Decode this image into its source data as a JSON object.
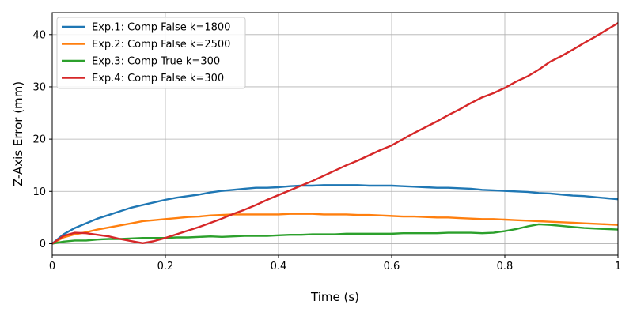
{
  "chart_data": {
    "type": "line",
    "title": "",
    "xlabel": "Time (s)",
    "ylabel": "Z-Axis Error (mm)",
    "xlim": [
      0,
      1
    ],
    "ylim": [
      -2.2,
      44.2
    ],
    "xticks": [
      0,
      0.2,
      0.4,
      0.6,
      0.8,
      1
    ],
    "xtick_labels": [
      "0",
      "0.2",
      "0.4",
      "0.6",
      "0.8",
      "1"
    ],
    "yticks": [
      0,
      10,
      20,
      30,
      40
    ],
    "ytick_labels": [
      "0",
      "10",
      "20",
      "30",
      "40"
    ],
    "grid": true,
    "legend_position": "top-left",
    "series": [
      {
        "name": "Exp.1: Comp False k=1800",
        "color": "#1f77b4",
        "x": [
          0,
          0.02,
          0.04,
          0.06,
          0.08,
          0.1,
          0.12,
          0.14,
          0.16,
          0.18,
          0.2,
          0.22,
          0.24,
          0.26,
          0.28,
          0.3,
          0.32,
          0.34,
          0.36,
          0.38,
          0.4,
          0.42,
          0.44,
          0.46,
          0.48,
          0.5,
          0.52,
          0.54,
          0.56,
          0.58,
          0.6,
          0.62,
          0.64,
          0.66,
          0.68,
          0.7,
          0.72,
          0.74,
          0.76,
          0.78,
          0.8,
          0.82,
          0.84,
          0.86,
          0.88,
          0.9,
          0.92,
          0.94,
          0.96,
          0.98,
          1.0
        ],
        "y": [
          0,
          1.8,
          3.0,
          3.9,
          4.8,
          5.5,
          6.2,
          6.9,
          7.4,
          7.9,
          8.4,
          8.8,
          9.1,
          9.4,
          9.8,
          10.1,
          10.3,
          10.5,
          10.7,
          10.7,
          10.8,
          11.0,
          11.1,
          11.1,
          11.2,
          11.2,
          11.2,
          11.2,
          11.1,
          11.1,
          11.1,
          11.0,
          10.9,
          10.8,
          10.7,
          10.7,
          10.6,
          10.5,
          10.3,
          10.2,
          10.1,
          10.0,
          9.9,
          9.7,
          9.6,
          9.4,
          9.2,
          9.1,
          8.9,
          8.7,
          8.5
        ]
      },
      {
        "name": "Exp.2: Comp False k=2500",
        "color": "#ff7f0e",
        "x": [
          0,
          0.02,
          0.04,
          0.06,
          0.08,
          0.1,
          0.12,
          0.14,
          0.16,
          0.18,
          0.2,
          0.22,
          0.24,
          0.26,
          0.28,
          0.3,
          0.32,
          0.34,
          0.36,
          0.38,
          0.4,
          0.42,
          0.44,
          0.46,
          0.48,
          0.5,
          0.52,
          0.54,
          0.56,
          0.58,
          0.6,
          0.62,
          0.64,
          0.66,
          0.68,
          0.7,
          0.72,
          0.74,
          0.76,
          0.78,
          0.8,
          0.82,
          0.84,
          0.86,
          0.88,
          0.9,
          0.92,
          0.94,
          0.96,
          0.98,
          1.0
        ],
        "y": [
          0,
          1.2,
          1.8,
          2.2,
          2.7,
          3.1,
          3.5,
          3.9,
          4.3,
          4.5,
          4.7,
          4.9,
          5.1,
          5.2,
          5.4,
          5.5,
          5.6,
          5.6,
          5.6,
          5.6,
          5.6,
          5.7,
          5.7,
          5.7,
          5.6,
          5.6,
          5.6,
          5.5,
          5.5,
          5.4,
          5.3,
          5.2,
          5.2,
          5.1,
          5.0,
          5.0,
          4.9,
          4.8,
          4.7,
          4.7,
          4.6,
          4.5,
          4.4,
          4.3,
          4.2,
          4.1,
          4.0,
          3.9,
          3.8,
          3.7,
          3.6
        ]
      },
      {
        "name": "Exp.3: Comp True k=300",
        "color": "#2ca02c",
        "x": [
          0,
          0.02,
          0.04,
          0.06,
          0.08,
          0.1,
          0.12,
          0.14,
          0.16,
          0.18,
          0.2,
          0.22,
          0.24,
          0.26,
          0.28,
          0.3,
          0.32,
          0.34,
          0.36,
          0.38,
          0.4,
          0.42,
          0.44,
          0.46,
          0.48,
          0.5,
          0.52,
          0.54,
          0.56,
          0.58,
          0.6,
          0.62,
          0.64,
          0.66,
          0.68,
          0.7,
          0.72,
          0.74,
          0.76,
          0.78,
          0.8,
          0.82,
          0.84,
          0.86,
          0.88,
          0.9,
          0.92,
          0.94,
          0.96,
          0.98,
          1.0
        ],
        "y": [
          0,
          0.4,
          0.6,
          0.6,
          0.8,
          0.9,
          0.9,
          1.0,
          1.1,
          1.1,
          1.1,
          1.2,
          1.2,
          1.3,
          1.4,
          1.3,
          1.4,
          1.5,
          1.5,
          1.5,
          1.6,
          1.7,
          1.7,
          1.8,
          1.8,
          1.8,
          1.9,
          1.9,
          1.9,
          1.9,
          1.9,
          2.0,
          2.0,
          2.0,
          2.0,
          2.1,
          2.1,
          2.1,
          2.0,
          2.1,
          2.4,
          2.8,
          3.3,
          3.7,
          3.6,
          3.4,
          3.2,
          3.0,
          2.9,
          2.8,
          2.7
        ]
      },
      {
        "name": "Exp.4: Comp False k=300",
        "color": "#d62728",
        "x": [
          0,
          0.02,
          0.04,
          0.06,
          0.08,
          0.1,
          0.12,
          0.14,
          0.16,
          0.18,
          0.2,
          0.22,
          0.24,
          0.26,
          0.28,
          0.3,
          0.32,
          0.34,
          0.36,
          0.38,
          0.4,
          0.42,
          0.44,
          0.46,
          0.48,
          0.5,
          0.52,
          0.54,
          0.56,
          0.58,
          0.6,
          0.62,
          0.64,
          0.66,
          0.68,
          0.7,
          0.72,
          0.74,
          0.76,
          0.78,
          0.8,
          0.82,
          0.84,
          0.86,
          0.88,
          0.9,
          0.92,
          0.94,
          0.96,
          0.98,
          1.0
        ],
        "y": [
          0,
          1.5,
          2.1,
          2.0,
          1.7,
          1.4,
          0.9,
          0.5,
          0.1,
          0.5,
          1.1,
          1.8,
          2.5,
          3.2,
          4.0,
          4.8,
          5.7,
          6.5,
          7.4,
          8.4,
          9.3,
          10.2,
          11.1,
          12.0,
          13.0,
          14.0,
          15.0,
          15.9,
          16.9,
          17.9,
          18.8,
          20.0,
          21.2,
          22.3,
          23.4,
          24.6,
          25.7,
          26.9,
          28.0,
          28.8,
          29.8,
          31.0,
          32.0,
          33.3,
          34.8,
          35.9,
          37.1,
          38.4,
          39.6,
          40.9,
          42.2
        ]
      }
    ]
  }
}
